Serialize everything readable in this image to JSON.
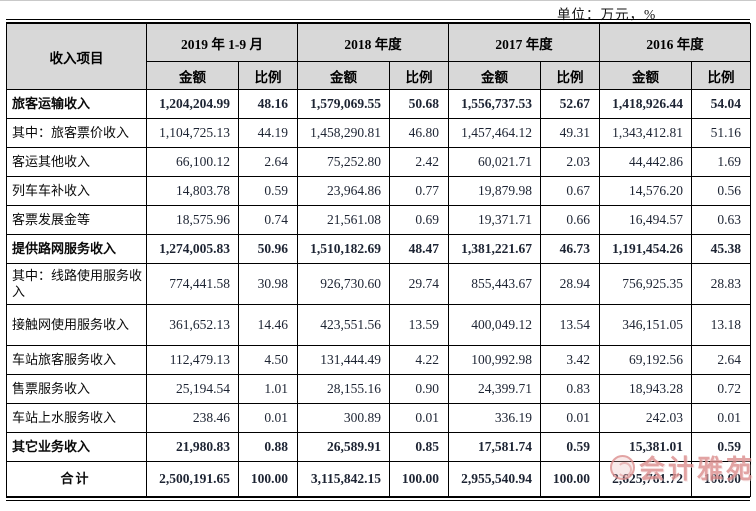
{
  "unit_label": "单位：万元，%",
  "colors": {
    "header_bg": "#d8d8d8",
    "number_text": "#1d2433",
    "watermark": "#dc8f8f"
  },
  "table": {
    "header": {
      "item_col": "收入项目",
      "periods": [
        "2019 年 1-9 月",
        "2018 年度",
        "2017 年度",
        "2016 年度"
      ],
      "amount_label": "金额",
      "ratio_label": "比例"
    },
    "rows": [
      {
        "label": "旅客运输收入",
        "bold": true,
        "cells": [
          "1,204,204.99",
          "48.16",
          "1,579,069.55",
          "50.68",
          "1,556,737.53",
          "52.67",
          "1,418,926.44",
          "54.04"
        ]
      },
      {
        "label": "其中：旅客票价收入",
        "bold": false,
        "cells": [
          "1,104,725.13",
          "44.19",
          "1,458,290.81",
          "46.80",
          "1,457,464.12",
          "49.31",
          "1,343,412.81",
          "51.16"
        ]
      },
      {
        "label": "客运其他收入",
        "bold": false,
        "cells": [
          "66,100.12",
          "2.64",
          "75,252.80",
          "2.42",
          "60,021.71",
          "2.03",
          "44,442.86",
          "1.69"
        ]
      },
      {
        "label": "列车车补收入",
        "bold": false,
        "cells": [
          "14,803.78",
          "0.59",
          "23,964.86",
          "0.77",
          "19,879.98",
          "0.67",
          "14,576.20",
          "0.56"
        ]
      },
      {
        "label": "客票发展金等",
        "bold": false,
        "cells": [
          "18,575.96",
          "0.74",
          "21,561.08",
          "0.69",
          "19,371.71",
          "0.66",
          "16,494.57",
          "0.63"
        ]
      },
      {
        "label": "提供路网服务收入",
        "bold": true,
        "cells": [
          "1,274,005.83",
          "50.96",
          "1,510,182.69",
          "48.47",
          "1,381,221.67",
          "46.73",
          "1,191,454.26",
          "45.38"
        ]
      },
      {
        "label": "其中：线路使用服务收入",
        "bold": false,
        "tall": true,
        "cells": [
          "774,441.58",
          "30.98",
          "926,730.60",
          "29.74",
          "855,443.67",
          "28.94",
          "756,925.35",
          "28.83"
        ]
      },
      {
        "label": "接触网使用服务收入",
        "bold": false,
        "tall": true,
        "cells": [
          "361,652.13",
          "14.46",
          "423,551.56",
          "13.59",
          "400,049.12",
          "13.54",
          "346,151.05",
          "13.18"
        ]
      },
      {
        "label": "车站旅客服务收入",
        "bold": false,
        "cells": [
          "112,479.13",
          "4.50",
          "131,444.49",
          "4.22",
          "100,992.98",
          "3.42",
          "69,192.56",
          "2.64"
        ]
      },
      {
        "label": "售票服务收入",
        "bold": false,
        "cells": [
          "25,194.54",
          "1.01",
          "28,155.16",
          "0.90",
          "24,399.71",
          "0.83",
          "18,943.28",
          "0.72"
        ]
      },
      {
        "label": "车站上水服务收入",
        "bold": false,
        "cells": [
          "238.46",
          "0.01",
          "300.89",
          "0.01",
          "336.19",
          "0.01",
          "242.03",
          "0.01"
        ]
      },
      {
        "label": "其它业务收入",
        "bold": true,
        "cells": [
          "21,980.83",
          "0.88",
          "26,589.91",
          "0.85",
          "17,581.74",
          "0.59",
          "15,381.01",
          "0.59"
        ]
      },
      {
        "label": "合计",
        "bold": true,
        "total": true,
        "cells": [
          "2,500,191.65",
          "100.00",
          "3,115,842.15",
          "100.00",
          "2,955,540.94",
          "100.00",
          "2,625,761.72",
          "100.00"
        ]
      }
    ]
  },
  "watermark": {
    "text": "会计雅苑"
  }
}
